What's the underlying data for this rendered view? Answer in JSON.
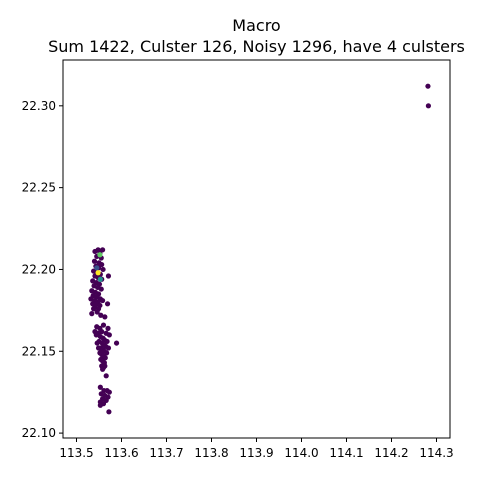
{
  "chart_data": {
    "type": "scatter",
    "title": "Macro",
    "subtitle": "Sum 1422, Culster 126, Noisy 1296, have 4 culsters",
    "xlim": [
      113.47,
      114.33
    ],
    "ylim": [
      22.097,
      22.328
    ],
    "x_ticks": [
      "113.5",
      "113.6",
      "113.7",
      "113.8",
      "113.9",
      "114.0",
      "114.1",
      "114.2",
      "114.3"
    ],
    "y_ticks": [
      "22.10",
      "22.15",
      "22.20",
      "22.25",
      "22.30"
    ],
    "grid": false,
    "legend": "none",
    "colors": {
      "noise": "#440154",
      "cluster_1": "#3b528b",
      "cluster_2": "#21918c",
      "cluster_3": "#5ec962",
      "cluster_4": "#fde725"
    },
    "series": [
      {
        "color_key": "noise",
        "points": [
          [
            113.548,
            22.212
          ],
          [
            113.541,
            22.211
          ],
          [
            113.552,
            22.21
          ],
          [
            113.558,
            22.212
          ],
          [
            113.545,
            22.208
          ],
          [
            113.555,
            22.207
          ],
          [
            113.54,
            22.205
          ],
          [
            113.55,
            22.204
          ],
          [
            113.556,
            22.203
          ],
          [
            113.543,
            22.202
          ],
          [
            113.549,
            22.201
          ],
          [
            113.559,
            22.2
          ],
          [
            113.538,
            22.199
          ],
          [
            113.546,
            22.198
          ],
          [
            113.553,
            22.197
          ],
          [
            113.541,
            22.196
          ],
          [
            113.571,
            22.196
          ],
          [
            113.548,
            22.195
          ],
          [
            113.556,
            22.194
          ],
          [
            113.536,
            22.193
          ],
          [
            113.544,
            22.192
          ],
          [
            113.551,
            22.191
          ],
          [
            113.539,
            22.19
          ],
          [
            113.547,
            22.189
          ],
          [
            113.555,
            22.188
          ],
          [
            113.534,
            22.187
          ],
          [
            113.542,
            22.186
          ],
          [
            113.549,
            22.185
          ],
          [
            113.537,
            22.184
          ],
          [
            113.545,
            22.183
          ],
          [
            113.553,
            22.182
          ],
          [
            113.532,
            22.182
          ],
          [
            113.54,
            22.181
          ],
          [
            113.558,
            22.181
          ],
          [
            113.548,
            22.18
          ],
          [
            113.536,
            22.179
          ],
          [
            113.544,
            22.179
          ],
          [
            113.569,
            22.179
          ],
          [
            113.552,
            22.178
          ],
          [
            113.541,
            22.177
          ],
          [
            113.549,
            22.176
          ],
          [
            113.538,
            22.176
          ],
          [
            113.546,
            22.174
          ],
          [
            113.534,
            22.173
          ],
          [
            113.554,
            22.172
          ],
          [
            113.563,
            22.171
          ],
          [
            113.56,
            22.166
          ],
          [
            113.57,
            22.164
          ],
          [
            113.545,
            22.165
          ],
          [
            113.552,
            22.164
          ],
          [
            113.541,
            22.162
          ],
          [
            113.556,
            22.162
          ],
          [
            113.548,
            22.161
          ],
          [
            113.566,
            22.161
          ],
          [
            113.573,
            22.16
          ],
          [
            113.544,
            22.16
          ],
          [
            113.553,
            22.159
          ],
          [
            113.559,
            22.158
          ],
          [
            113.562,
            22.157
          ],
          [
            113.568,
            22.156
          ],
          [
            113.55,
            22.156
          ],
          [
            113.557,
            22.155
          ],
          [
            113.589,
            22.155
          ],
          [
            113.546,
            22.155
          ],
          [
            113.561,
            22.154
          ],
          [
            113.565,
            22.153
          ],
          [
            113.554,
            22.152
          ],
          [
            113.571,
            22.152
          ],
          [
            113.549,
            22.152
          ],
          [
            113.558,
            22.151
          ],
          [
            113.562,
            22.15
          ],
          [
            113.567,
            22.149
          ],
          [
            113.552,
            22.149
          ],
          [
            113.556,
            22.148
          ],
          [
            113.56,
            22.147
          ],
          [
            113.564,
            22.146
          ],
          [
            113.554,
            22.145
          ],
          [
            113.558,
            22.144
          ],
          [
            113.562,
            22.143
          ],
          [
            113.556,
            22.141
          ],
          [
            113.56,
            22.14
          ],
          [
            113.563,
            22.141
          ],
          [
            113.558,
            22.139
          ],
          [
            113.566,
            22.135
          ],
          [
            113.553,
            22.128
          ],
          [
            113.561,
            22.126
          ],
          [
            113.568,
            22.126
          ],
          [
            113.573,
            22.125
          ],
          [
            113.555,
            22.124
          ],
          [
            113.563,
            22.123
          ],
          [
            113.57,
            22.122
          ],
          [
            113.558,
            22.121
          ],
          [
            113.566,
            22.12
          ],
          [
            113.553,
            22.119
          ],
          [
            113.56,
            22.118
          ],
          [
            113.553,
            22.117
          ],
          [
            113.572,
            22.113
          ],
          [
            114.281,
            22.312
          ],
          [
            114.282,
            22.3
          ]
        ]
      },
      {
        "color_key": "cluster_1",
        "points": [
          [
            113.545,
            22.201
          ]
        ]
      },
      {
        "color_key": "cluster_2",
        "points": [
          [
            113.553,
            22.194
          ]
        ]
      },
      {
        "color_key": "cluster_3",
        "points": [
          [
            113.552,
            22.209
          ]
        ]
      },
      {
        "color_key": "cluster_4",
        "points": [
          [
            113.548,
            22.198
          ]
        ]
      }
    ]
  }
}
